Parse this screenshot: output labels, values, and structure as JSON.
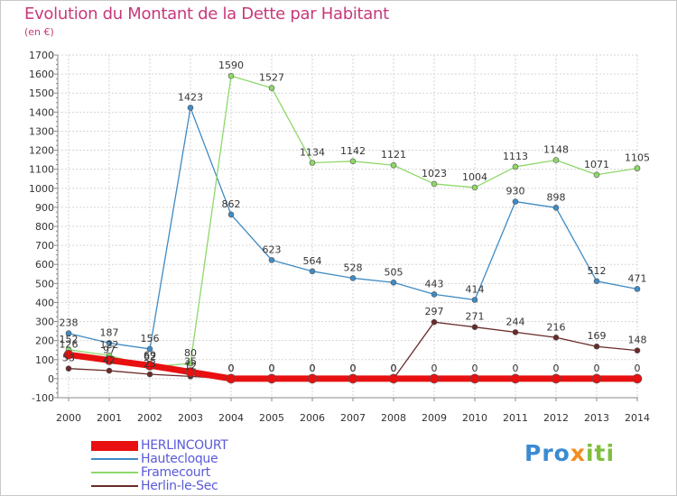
{
  "title": "Evolution du Montant de la Dette par Habitant",
  "subtitle": "(en €)",
  "logo": {
    "text": "Proxiti",
    "parts": [
      "Pro",
      "x",
      "iti"
    ]
  },
  "chart_data": {
    "type": "line",
    "x": [
      "2000",
      "2001",
      "2002",
      "2003",
      "2004",
      "2005",
      "2006",
      "2007",
      "2008",
      "2009",
      "2010",
      "2011",
      "2012",
      "2013",
      "2014"
    ],
    "ylim": [
      -100,
      1700
    ],
    "yticks": [
      -100,
      0,
      100,
      200,
      300,
      400,
      500,
      600,
      700,
      800,
      900,
      1000,
      1100,
      1200,
      1300,
      1400,
      1500,
      1600,
      1700
    ],
    "grid": true,
    "legend_position": "bottom-left",
    "series": [
      {
        "name": "HERLINCOURT",
        "color": "#e81010",
        "line_width": 7,
        "values": [
          126,
          97,
          69,
          35,
          0,
          0,
          0,
          0,
          0,
          0,
          0,
          0,
          0,
          0,
          0
        ]
      },
      {
        "name": "Hautecloque",
        "color": "#3f8bc4",
        "line_width": 1.3,
        "values": [
          238,
          187,
          156,
          1423,
          862,
          623,
          564,
          528,
          505,
          443,
          414,
          930,
          898,
          512,
          471
        ]
      },
      {
        "name": "Framecourt",
        "color": "#8ed86a",
        "line_width": 1.3,
        "values": [
          152,
          122,
          62,
          80,
          1590,
          1527,
          1134,
          1142,
          1121,
          1023,
          1004,
          1113,
          1148,
          1071,
          1105
        ]
      },
      {
        "name": "Herlin-le-Sec",
        "color": "#6a2a2a",
        "line_width": 1.3,
        "values": [
          53,
          42,
          23,
          12,
          0,
          0,
          0,
          0,
          0,
          297,
          271,
          244,
          216,
          169,
          148
        ]
      }
    ],
    "data_labels": [
      {
        "series": "HERLINCOURT",
        "labels": [
          "126",
          "97",
          "69",
          "35",
          "0",
          "0",
          "0",
          "0",
          "0",
          "0",
          "0",
          "0",
          "0",
          "0",
          "0"
        ]
      },
      {
        "series": "Hautecloque",
        "labels": [
          "238",
          "187",
          "156",
          "1423",
          "862",
          "623",
          "564",
          "528",
          "505",
          "443",
          "414",
          "930",
          "898",
          "512",
          "471"
        ]
      },
      {
        "series": "Framecourt",
        "labels": [
          "152",
          "122",
          "62",
          "80",
          "1590",
          "1527",
          "1134",
          "1142",
          "1121",
          "1023",
          "1004",
          "1113",
          "1148",
          "1071",
          "1105"
        ]
      },
      {
        "series": "Herlin-le-Sec",
        "labels": [
          "53",
          "42",
          "23",
          "12",
          "0",
          "0",
          "0",
          "0",
          "0",
          "297",
          "271",
          "244",
          "216",
          "169",
          "148"
        ]
      }
    ]
  }
}
